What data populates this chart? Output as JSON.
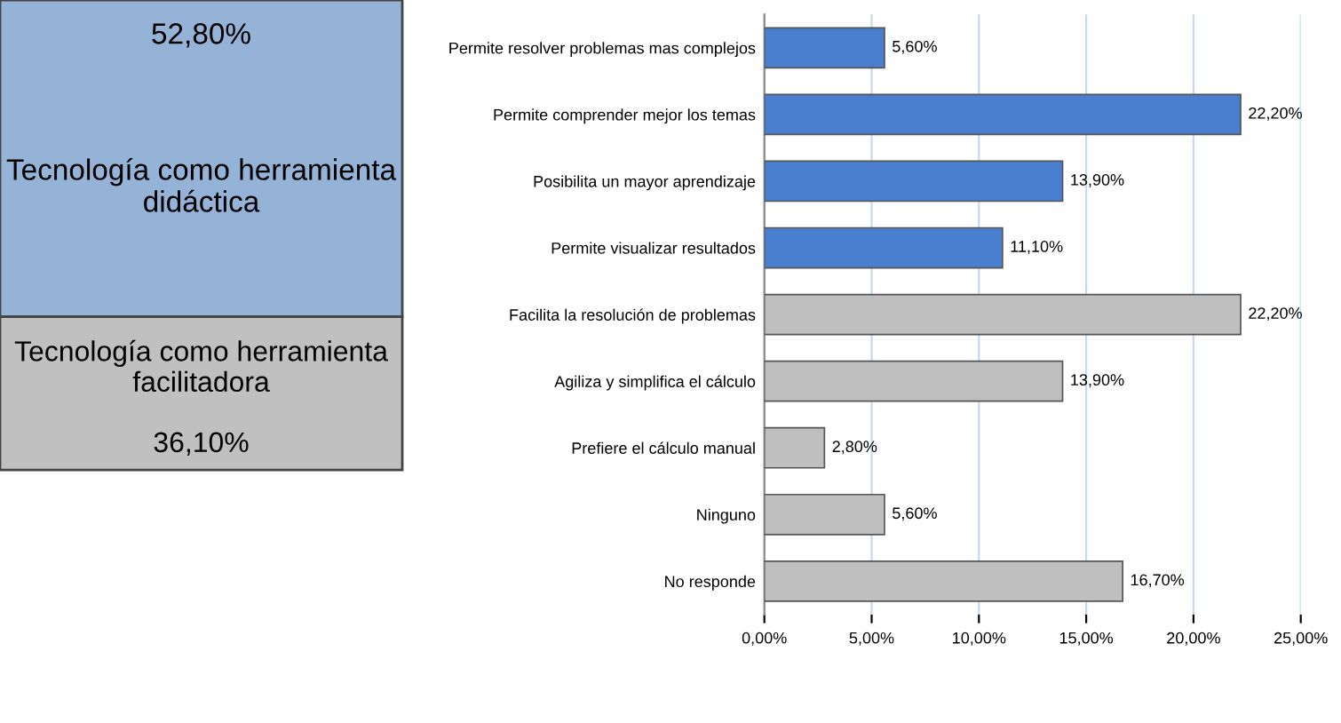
{
  "chart_data": {
    "type": "bar",
    "orientation": "horizontal",
    "categories": [
      "Permite resolver problemas mas complejos",
      "Permite comprender mejor los temas",
      "Posibilita un mayor aprendizaje",
      "Permite visualizar resultados",
      "Facilita la resolución de problemas",
      "Agiliza y simplifica el cálculo",
      "Prefiere el cálculo manual",
      "Ninguno",
      "No responde"
    ],
    "values": [
      5.6,
      22.2,
      13.9,
      11.1,
      22.2,
      13.9,
      2.8,
      5.6,
      16.7
    ],
    "value_labels": [
      "5,60%",
      "22,20%",
      "13,90%",
      "11,10%",
      "22,20%",
      "13,90%",
      "2,80%",
      "5,60%",
      "16,70%"
    ],
    "colors": [
      "#4a7fd0",
      "#4a7fd0",
      "#4a7fd0",
      "#4a7fd0",
      "#bfbfbf",
      "#bfbfbf",
      "#bfbfbf",
      "#bfbfbf",
      "#bfbfbf"
    ],
    "xlim": [
      0,
      25
    ],
    "xticks": [
      {
        "value": 0,
        "label": "0,00%"
      },
      {
        "value": 5,
        "label": "5,00%"
      },
      {
        "value": 10,
        "label": "10,00%"
      },
      {
        "value": 15,
        "label": "15,00%"
      },
      {
        "value": 20,
        "label": "20,00%"
      },
      {
        "value": 25,
        "label": "25,00%"
      }
    ],
    "grid": "x",
    "legend": false,
    "annotations": [
      "52,80%",
      "Tecnología como herramienta didáctica",
      "Tecnología como herramienta facilitadora",
      "36,10%"
    ]
  }
}
